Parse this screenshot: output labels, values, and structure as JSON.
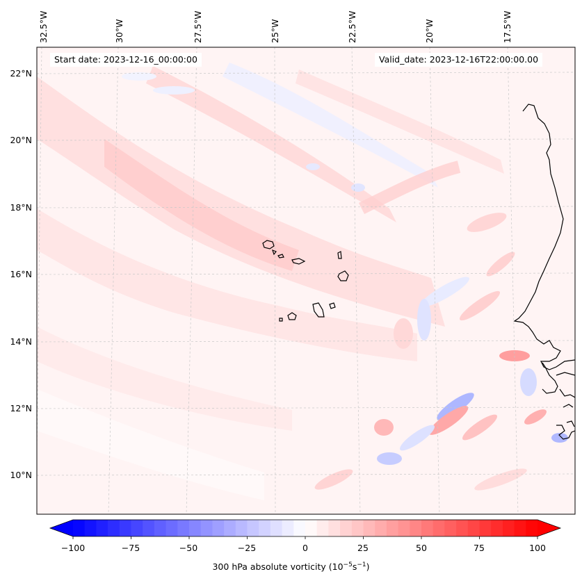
{
  "map": {
    "longitude_labels": [
      "32.5°W",
      "30°W",
      "27.5°W",
      "25°W",
      "22.5°W",
      "20°W",
      "17.5°W"
    ],
    "latitude_labels": [
      "22°N",
      "20°N",
      "18°N",
      "16°N",
      "14°N",
      "12°N",
      "10°N"
    ],
    "start_date": "Start date: 2023-12-16_00:00:00",
    "valid_date": "Valid_date: 2023-12-16T22:00:00.00",
    "field": "300 hPa absolute vorticity",
    "coastline_color": "#000000",
    "gridline_color": "#c8c8c8"
  },
  "colorbar": {
    "ticks": [
      "−100",
      "−75",
      "−50",
      "−25",
      "0",
      "25",
      "50",
      "75",
      "100"
    ],
    "label_text": "300 hPa absolute vorticity (10",
    "label_exp1": "−5",
    "label_mid": "s",
    "label_exp2": "−1",
    "label_end": ")",
    "min_color": "#0000ff",
    "mid_color": "#ffffff",
    "max_color": "#ff0000"
  }
}
